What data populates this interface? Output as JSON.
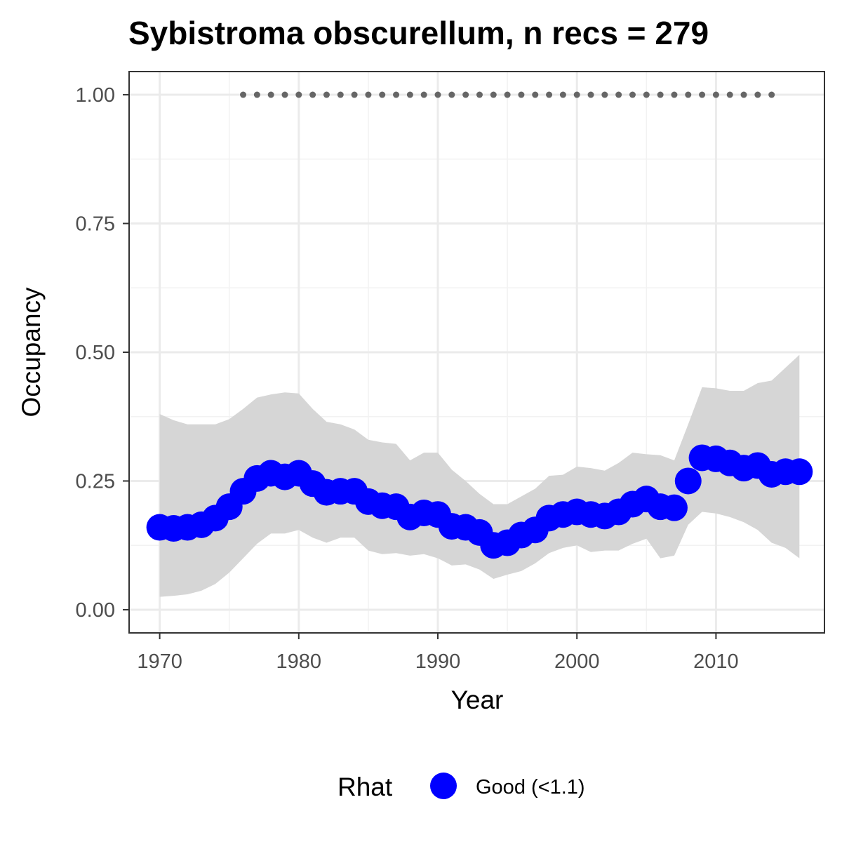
{
  "chart_data": {
    "type": "line",
    "title": "Sybistroma obscurellum, n recs = 279",
    "xlabel": "Year",
    "ylabel": "Occupancy",
    "xlim": [
      1967.8,
      2017.8
    ],
    "ylim": [
      -0.045,
      1.045
    ],
    "x_ticks": [
      1970,
      1980,
      1990,
      2000,
      2010
    ],
    "x_tick_labels": [
      "1970",
      "1980",
      "1990",
      "2000",
      "2010"
    ],
    "y_ticks": [
      0,
      0.25,
      0.5,
      0.75,
      1.0
    ],
    "y_tick_labels": [
      "0.00",
      "0.25",
      "0.50",
      "0.75",
      "1.00"
    ],
    "grid": true,
    "years": [
      1970,
      1971,
      1972,
      1973,
      1974,
      1975,
      1976,
      1977,
      1978,
      1979,
      1980,
      1981,
      1982,
      1983,
      1984,
      1985,
      1986,
      1987,
      1988,
      1989,
      1990,
      1991,
      1992,
      1993,
      1994,
      1995,
      1996,
      1997,
      1998,
      1999,
      2000,
      2001,
      2002,
      2003,
      2004,
      2005,
      2006,
      2007,
      2008,
      2009,
      2010,
      2011,
      2012,
      2013,
      2014,
      2015,
      2016
    ],
    "series": [
      {
        "name": "Good (<1.1)",
        "values": [
          0.16,
          0.158,
          0.16,
          0.165,
          0.178,
          0.2,
          0.23,
          0.255,
          0.265,
          0.258,
          0.265,
          0.245,
          0.228,
          0.23,
          0.23,
          0.21,
          0.202,
          0.2,
          0.18,
          0.188,
          0.185,
          0.162,
          0.16,
          0.15,
          0.125,
          0.13,
          0.145,
          0.155,
          0.178,
          0.185,
          0.19,
          0.185,
          0.182,
          0.19,
          0.205,
          0.215,
          0.2,
          0.198,
          0.25,
          0.295,
          0.293,
          0.285,
          0.275,
          0.28,
          0.263,
          0.268,
          0.268
        ],
        "lower": [
          0.025,
          0.027,
          0.03,
          0.037,
          0.05,
          0.072,
          0.1,
          0.128,
          0.148,
          0.148,
          0.155,
          0.14,
          0.13,
          0.14,
          0.14,
          0.115,
          0.108,
          0.11,
          0.105,
          0.108,
          0.1,
          0.086,
          0.088,
          0.078,
          0.06,
          0.068,
          0.075,
          0.09,
          0.11,
          0.12,
          0.125,
          0.112,
          0.115,
          0.115,
          0.128,
          0.138,
          0.1,
          0.105,
          0.165,
          0.19,
          0.187,
          0.18,
          0.17,
          0.155,
          0.13,
          0.12,
          0.1
        ],
        "upper": [
          0.38,
          0.368,
          0.36,
          0.36,
          0.36,
          0.37,
          0.39,
          0.412,
          0.418,
          0.422,
          0.42,
          0.39,
          0.365,
          0.36,
          0.35,
          0.33,
          0.325,
          0.322,
          0.29,
          0.305,
          0.305,
          0.272,
          0.25,
          0.225,
          0.205,
          0.205,
          0.22,
          0.235,
          0.26,
          0.262,
          0.278,
          0.275,
          0.27,
          0.285,
          0.305,
          0.302,
          0.3,
          0.29,
          0.36,
          0.432,
          0.43,
          0.425,
          0.425,
          0.44,
          0.445,
          0.47,
          0.495
        ],
        "color": "#0000ff"
      }
    ],
    "detections": {
      "years": [
        1976,
        1977,
        1978,
        1979,
        1980,
        1981,
        1982,
        1983,
        1984,
        1985,
        1986,
        1987,
        1988,
        1989,
        1990,
        1991,
        1992,
        1993,
        1994,
        1995,
        1996,
        1997,
        1998,
        1999,
        2000,
        2001,
        2002,
        2003,
        2004,
        2005,
        2006,
        2007,
        2008,
        2009,
        2010,
        2011,
        2012,
        2013,
        2014
      ],
      "value": 1.0,
      "color": "#666666"
    },
    "ribbon_color": "#d6d6d6",
    "legend": {
      "title": "Rhat",
      "position": "bottom",
      "entries": [
        {
          "label": "Good (<1.1)",
          "color": "#0000ff"
        }
      ]
    }
  }
}
